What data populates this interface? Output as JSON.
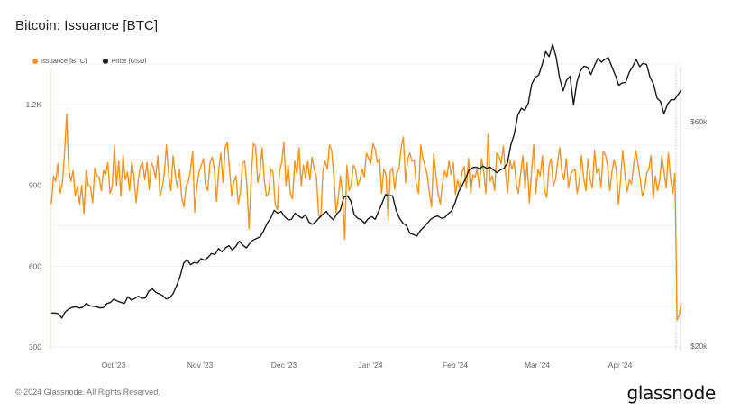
{
  "header": {
    "title": "Bitcoin: Issuance [BTC]"
  },
  "legend": [
    {
      "label": "Issuance [BTC]",
      "color": "#f7931a"
    },
    {
      "label": "Price [USD]",
      "color": "#1a1a1a"
    }
  ],
  "footer": {
    "copyright": "© 2024 Glassnode. All Rights Reserved.",
    "brand": "glassnode"
  },
  "chart_data": {
    "type": "line",
    "title": "Bitcoin: Issuance [BTC]",
    "xlabel": "",
    "ylabel_left": "Issuance [BTC]",
    "ylabel_right": "Price [USD]",
    "x_ticks": [
      "Oct '23",
      "Nov '23",
      "Dec '23",
      "Jan '24",
      "Feb '24",
      "Mar '24",
      "Apr '24"
    ],
    "y_left_ticks": [
      "300",
      "600",
      "900",
      "1.2K"
    ],
    "y_left_range": [
      300,
      1350
    ],
    "y_right_ticks": [
      "$20k",
      "$60k"
    ],
    "y_right_scale": "linear",
    "grid": true,
    "legend_position": "top-left",
    "annotations": [
      "Vertical dotted line marking the April 2024 halving"
    ],
    "x_start": "2023-09-08",
    "x_end": "2024-04-23",
    "series": [
      {
        "name": "Issuance [BTC]",
        "axis": "left",
        "color": "#f7931a",
        "values": [
          830,
          935,
          915,
          980,
          870,
          905,
          1010,
          1165,
          960,
          915,
          955,
          860,
          895,
          830,
          900,
          795,
          955,
          900,
          895,
          835,
          965,
          935,
          930,
          880,
          955,
          940,
          985,
          870,
          895,
          1050,
          900,
          990,
          860,
          1010,
          920,
          950,
          880,
          990,
          935,
          835,
          920,
          970,
          985,
          920,
          985,
          885,
          985,
          965,
          925,
          1010,
          860,
          890,
          945,
          1050,
          935,
          880,
          1010,
          940,
          890,
          960,
          855,
          820,
          895,
          915,
          955,
          1025,
          800,
          900,
          950,
          975,
          1000,
          900,
          880,
          985,
          1005,
          960,
          840,
          955,
          1020,
          910,
          1040,
          1060,
          960,
          860,
          915,
          935,
          830,
          875,
          985,
          990,
          900,
          740,
          935,
          1055,
          1045,
          910,
          950,
          1040,
          920,
          860,
          870,
          960,
          950,
          830,
          810,
          950,
          985,
          1060,
          900,
          975,
          870,
          850,
          990,
          940,
          1040,
          900,
          975,
          925,
          990,
          920,
          1005,
          960,
          930,
          790,
          780,
          955,
          990,
          960,
          1050,
          1030,
          935,
          800,
          850,
          935,
          870,
          700,
          975,
          880,
          900,
          975,
          960,
          900,
          920,
          960,
          930,
          1020,
          1000,
          980,
          1055,
          1035,
          985,
          1000,
          870,
          960,
          940,
          770,
          950,
          965,
          885,
          950,
          960,
          1040,
          1080,
          910,
          1000,
          1020,
          990,
          995,
          905,
          870,
          1050,
          1000,
          970,
          940,
          870,
          820,
          1020,
          940,
          870,
          830,
          905,
          955,
          930,
          990,
          940,
          985,
          865,
          920,
          885,
          950,
          970,
          890,
          1000,
          870,
          940,
          930,
          960,
          890,
          1000,
          950,
          870,
          1090,
          915,
          935,
          880,
          1020,
          1010,
          980,
          1045,
          950,
          870,
          995,
          960,
          990,
          905,
          870,
          945,
          1010,
          890,
          985,
          835,
          950,
          1050,
          870,
          960,
          935,
          1010,
          880,
          855,
          970,
          1000,
          900,
          920,
          985,
          1040,
          950,
          920,
          1000,
          890,
          940,
          955,
          960,
          870,
          915,
          1010,
          930,
          880,
          1000,
          920,
          890,
          1030,
          945,
          965,
          890,
          1025,
          1015,
          975,
          880,
          950,
          995,
          960,
          830,
          920,
          1030,
          940,
          875,
          920,
          905,
          975,
          1030,
          980,
          925,
          860,
          885,
          945,
          960,
          1010,
          850,
          935,
          880,
          920,
          1010,
          950,
          890,
          1020,
          930,
          870,
          945,
          400,
          420,
          465
        ]
      },
      {
        "name": "Price [USD]",
        "axis": "right",
        "color": "#1a1a1a",
        "values_usd_k": [
          25.9,
          25.9,
          25.8,
          25.0,
          26.1,
          26.6,
          26.9,
          27.0,
          26.8,
          26.9,
          27.6,
          27.2,
          27.1,
          27.0,
          26.8,
          26.9,
          27.6,
          27.8,
          28.4,
          28.0,
          27.8,
          27.6,
          28.8,
          28.2,
          28.5,
          28.9,
          28.5,
          28.6,
          29.8,
          30.2,
          29.6,
          29.3,
          29.0,
          28.4,
          28.6,
          29.4,
          30.8,
          32.5,
          34.8,
          35.4,
          34.5,
          34.9,
          34.8,
          35.6,
          35.3,
          35.8,
          36.5,
          36.3,
          37.4,
          36.8,
          37.5,
          37.9,
          37.1,
          37.8,
          38.7,
          38.0,
          37.5,
          38.3,
          38.9,
          39.2,
          39.5,
          40.6,
          41.9,
          42.8,
          44.2,
          43.7,
          44.0,
          43.1,
          42.5,
          42.6,
          43.7,
          43.2,
          42.8,
          43.4,
          42.1,
          41.7,
          42.2,
          42.9,
          43.5,
          44.0,
          43.1,
          42.5,
          43.6,
          44.2,
          46.5,
          46.8,
          45.9,
          43.4,
          42.8,
          42.5,
          41.9,
          42.7,
          43.1,
          42.6,
          44.0,
          45.5,
          47.0,
          46.8,
          46.8,
          44.3,
          42.8,
          41.9,
          41.5,
          40.1,
          39.9,
          39.6,
          40.6,
          41.2,
          41.9,
          42.6,
          43.0,
          43.2,
          42.8,
          42.9,
          43.6,
          44.1,
          45.6,
          47.5,
          48.6,
          49.9,
          51.4,
          51.8,
          51.9,
          51.6,
          52.1,
          51.7,
          51.9,
          51.4,
          50.9,
          51.4,
          51.7,
          52.6,
          55.9,
          57.8,
          61.2,
          62.4,
          62.0,
          63.3,
          66.7,
          67.9,
          68.3,
          70.2,
          72.5,
          71.6,
          73.8,
          71.5,
          67.8,
          65.5,
          67.4,
          68.1,
          63.0,
          67.1,
          69.1,
          69.9,
          69.7,
          68.4,
          70.0,
          71.3,
          70.6,
          71.1,
          71.4,
          69.8,
          68.3,
          66.5,
          66.9,
          67.0,
          68.8,
          69.8,
          71.1,
          69.8,
          70.4,
          70.2,
          67.9,
          66.7,
          64.2,
          63.6,
          61.4,
          63.1,
          63.9,
          63.9,
          64.8,
          65.7
        ]
      }
    ]
  }
}
